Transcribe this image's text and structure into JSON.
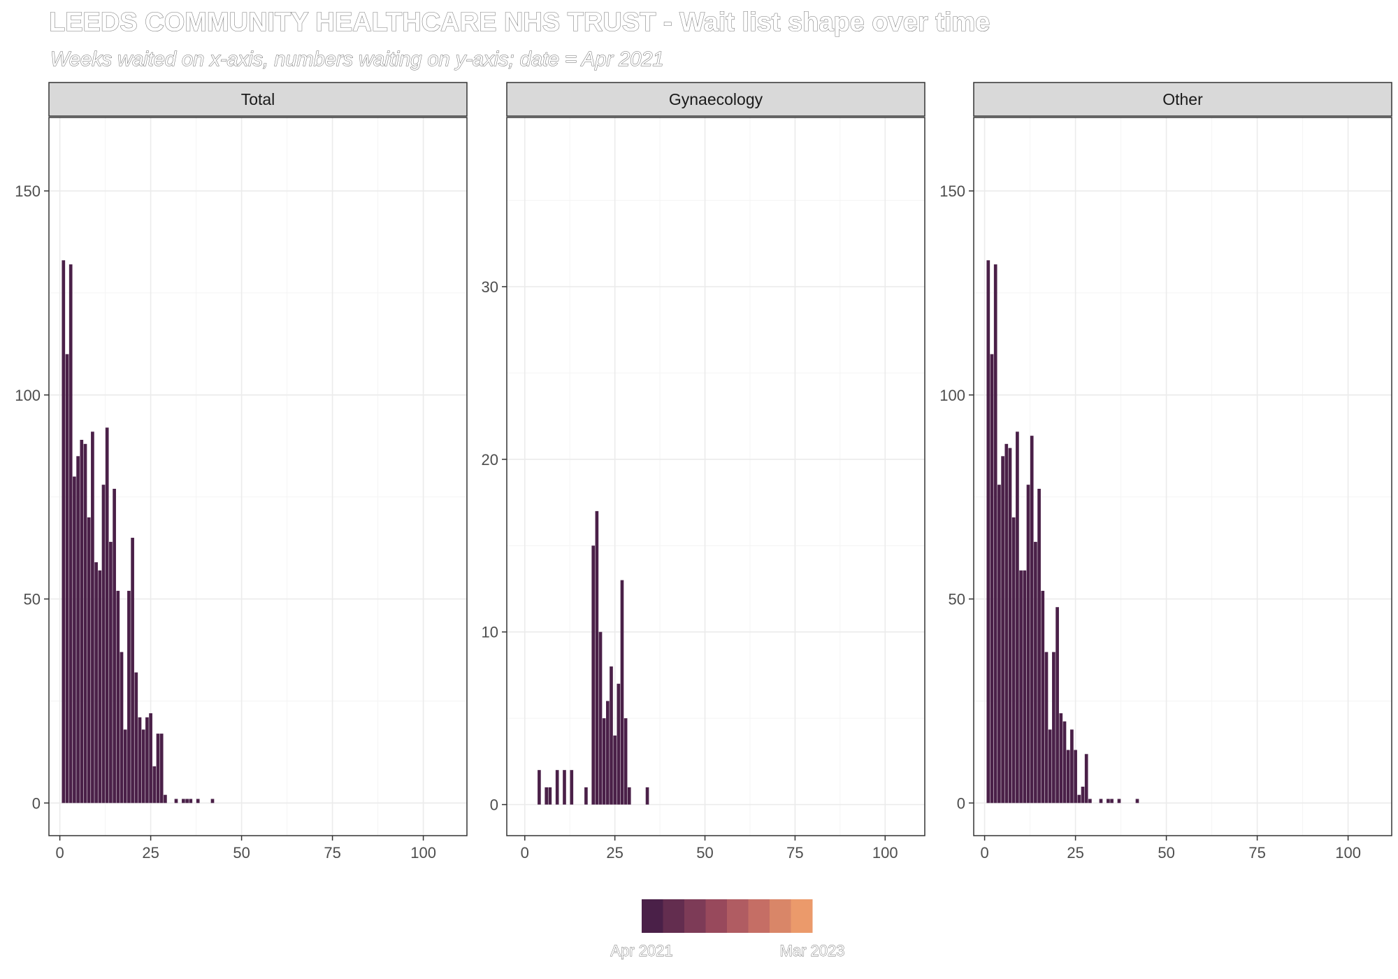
{
  "title": "LEEDS COMMUNITY HEALTHCARE NHS TRUST - Wait list shape over time",
  "subtitle": "Weeks waited on x-axis, numbers waiting on y-axis; date = Apr 2021",
  "colors": {
    "bar": "#4a2048",
    "grid_major": "#ebebeb",
    "grid_minor": "#f4f4f4",
    "panel_border": "#333333",
    "strip_fill": "#d9d9d9"
  },
  "legend": {
    "start_label": "Apr 2021",
    "end_label": "Mar 2023",
    "colors": [
      "#4a2048",
      "#632d4f",
      "#7d3b57",
      "#98495c",
      "#b05c62",
      "#c56e65",
      "#d98668",
      "#eb9a6b"
    ]
  },
  "chart_data": [
    {
      "type": "bar",
      "facet": "Total",
      "xlim": [
        -3,
        112
      ],
      "ylim": [
        -8,
        168
      ],
      "x_ticks": [
        0,
        25,
        50,
        75,
        100
      ],
      "y_ticks": [
        0,
        50,
        100,
        150
      ],
      "x": [
        1,
        2,
        3,
        4,
        5,
        6,
        7,
        8,
        9,
        10,
        11,
        12,
        13,
        14,
        15,
        16,
        17,
        18,
        19,
        20,
        21,
        22,
        23,
        24,
        25,
        26,
        27,
        28,
        29,
        32,
        34,
        35,
        36,
        38,
        42
      ],
      "values": [
        133,
        110,
        132,
        80,
        85,
        89,
        88,
        70,
        91,
        59,
        57,
        78,
        92,
        64,
        77,
        52,
        37,
        18,
        52,
        65,
        32,
        21,
        18,
        21,
        22,
        9,
        17,
        17,
        2,
        1,
        1,
        1,
        1,
        1,
        1
      ]
    },
    {
      "type": "bar",
      "facet": "Gynaecology",
      "xlim": [
        -5,
        111
      ],
      "ylim": [
        -1.8,
        39.8
      ],
      "x_ticks": [
        0,
        25,
        50,
        75,
        100
      ],
      "y_ticks": [
        0,
        10,
        20,
        30
      ],
      "x": [
        4,
        6,
        7,
        9,
        11,
        13,
        17,
        19,
        20,
        21,
        22,
        23,
        24,
        25,
        26,
        27,
        28,
        29,
        34
      ],
      "values": [
        2,
        1,
        1,
        2,
        2,
        2,
        1,
        15,
        17,
        10,
        5,
        6,
        8,
        4,
        7,
        13,
        5,
        1,
        1
      ]
    },
    {
      "type": "bar",
      "facet": "Other",
      "xlim": [
        -3,
        112
      ],
      "ylim": [
        -8,
        168
      ],
      "x_ticks": [
        0,
        25,
        50,
        75,
        100
      ],
      "y_ticks": [
        0,
        50,
        100,
        150
      ],
      "x": [
        1,
        2,
        3,
        4,
        5,
        6,
        7,
        8,
        9,
        10,
        11,
        12,
        13,
        14,
        15,
        16,
        17,
        18,
        19,
        20,
        21,
        22,
        23,
        24,
        25,
        26,
        27,
        28,
        29,
        32,
        34,
        35,
        37,
        42
      ],
      "values": [
        133,
        110,
        132,
        78,
        85,
        88,
        87,
        70,
        91,
        57,
        57,
        78,
        90,
        64,
        77,
        52,
        37,
        18,
        37,
        48,
        22,
        20,
        13,
        18,
        13,
        2,
        4,
        12,
        1,
        1,
        1,
        1,
        1,
        1
      ]
    }
  ]
}
